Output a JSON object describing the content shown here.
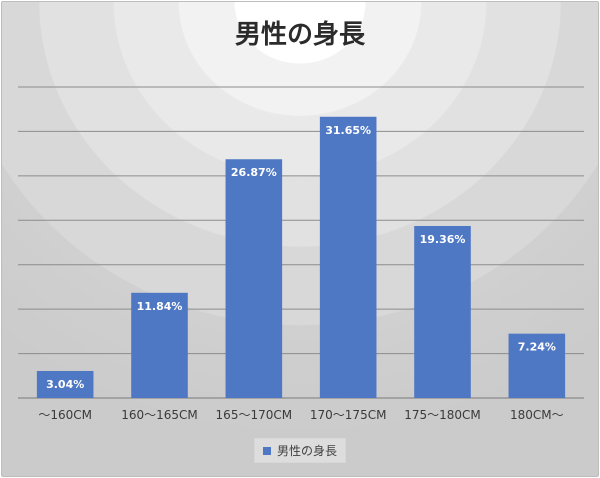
{
  "chart_data": {
    "type": "bar",
    "title": "男性の身長",
    "categories": [
      "～160CM",
      "160～165CM",
      "165～170CM",
      "170～175CM",
      "175～180CM",
      "180CM～"
    ],
    "series": [
      {
        "name": "男性の身長",
        "values": [
          3.04,
          11.84,
          26.87,
          31.65,
          19.36,
          7.24
        ],
        "labels": [
          "3.04%",
          "11.84%",
          "26.87%",
          "31.65%",
          "19.36%",
          "7.24%"
        ]
      }
    ],
    "ylim": [
      0,
      35
    ],
    "y_gridlines": [
      5,
      10,
      15,
      20,
      25,
      30,
      35
    ],
    "grid": true,
    "legend": "bottom",
    "colors": {
      "bar": "#4f78c4",
      "grid": "#8c8c8c"
    }
  }
}
